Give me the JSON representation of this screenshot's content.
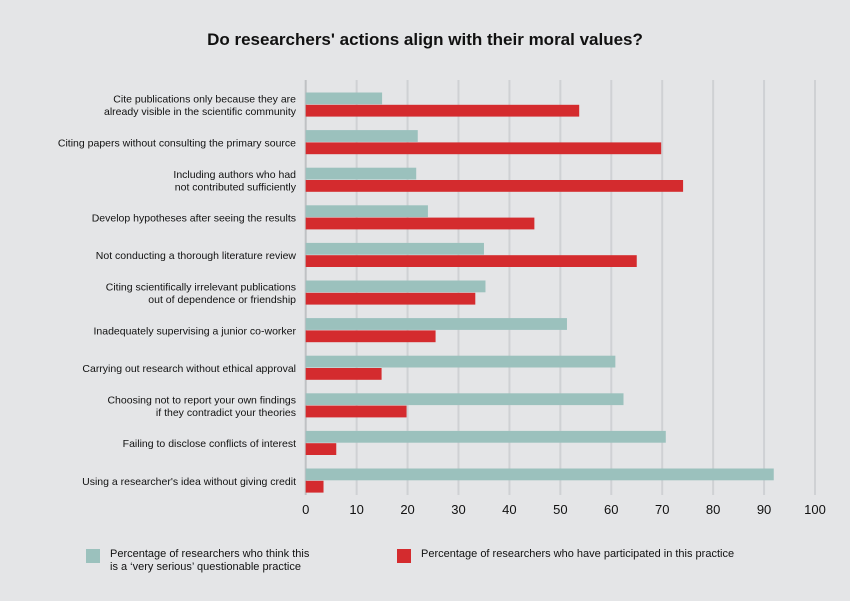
{
  "chart_data": {
    "type": "bar",
    "orientation": "horizontal",
    "title": "Do researchers' actions align with their moral values?",
    "categories": [
      "Cite publications only because they are\nalready visible in the scientific community",
      "Citing papers without consulting the primary source",
      "Including authors who had\nnot contributed sufficiently",
      "Develop hypotheses after seeing the results",
      "Not conducting a thorough literature review",
      "Citing scientifically irrelevant publications\nout of dependence or friendship",
      "Inadequately supervising a junior co-worker",
      "Carrying out research without ethical approval",
      "Choosing not to report your own findings\nif they contradict your theories",
      "Failing to disclose conflicts of interest",
      "Using a researcher's idea without giving credit"
    ],
    "series": [
      {
        "name": "Percentage of researchers who think this\nis a ‘very serious’ questionable practice",
        "color": "#9bc1bd",
        "values": [
          15,
          22,
          21.7,
          24,
          35,
          35.3,
          51.3,
          60.8,
          62.4,
          70.7,
          91.9
        ]
      },
      {
        "name": "Percentage of researchers who have participated in this practice",
        "color": "#d42b2e",
        "values": [
          53.7,
          69.8,
          74.1,
          44.9,
          65,
          33.3,
          25.5,
          14.9,
          19.8,
          6,
          3.5
        ]
      }
    ],
    "xlim": [
      0,
      100
    ],
    "xticks": [
      0,
      10,
      20,
      30,
      40,
      50,
      60,
      70,
      80,
      90,
      100
    ],
    "grid": true,
    "legend": "bottom"
  }
}
